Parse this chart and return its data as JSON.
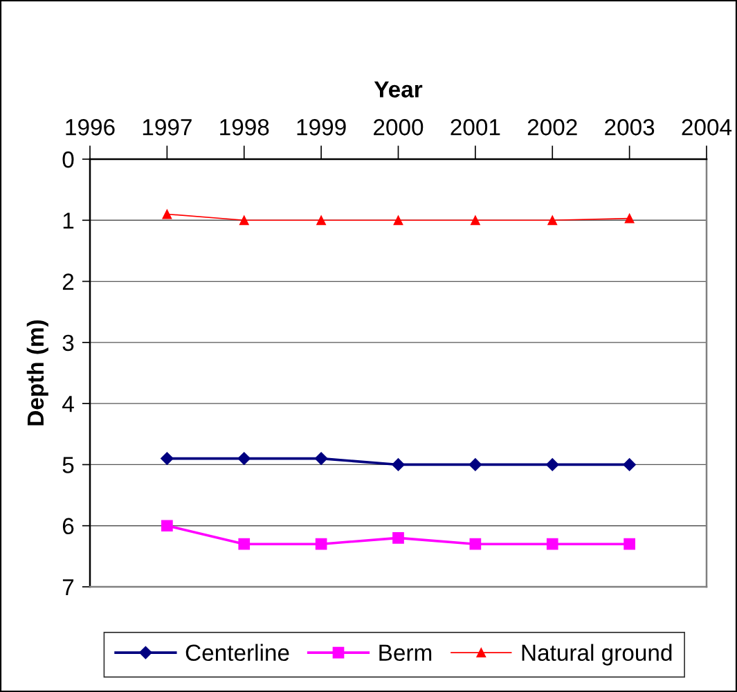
{
  "chart_data": {
    "type": "line",
    "xlabel": "Year",
    "ylabel": "Depth (m)",
    "x": [
      1997,
      1998,
      1999,
      2000,
      2001,
      2002,
      2003
    ],
    "series": [
      {
        "name": "Centerline",
        "color": "#000080",
        "marker": "diamond",
        "values": [
          4.9,
          4.9,
          4.9,
          5.0,
          5.0,
          5.0,
          5.0
        ]
      },
      {
        "name": "Berm",
        "color": "#ff00ff",
        "marker": "square",
        "values": [
          6.0,
          6.3,
          6.3,
          6.2,
          6.3,
          6.3,
          6.3
        ]
      },
      {
        "name": "Natural ground",
        "color": "#ff0000",
        "marker": "triangle",
        "values": [
          0.9,
          1.0,
          1.0,
          1.0,
          1.0,
          1.0,
          0.97
        ]
      }
    ],
    "xlim": [
      1996,
      2004
    ],
    "xticks": [
      1996,
      1997,
      1998,
      1999,
      2000,
      2001,
      2002,
      2003,
      2004
    ],
    "ylim": [
      7,
      0
    ],
    "yticks": [
      0,
      1,
      2,
      3,
      4,
      5,
      6,
      7
    ],
    "grid": "y",
    "legend": "bottom",
    "line_style": "solid"
  }
}
